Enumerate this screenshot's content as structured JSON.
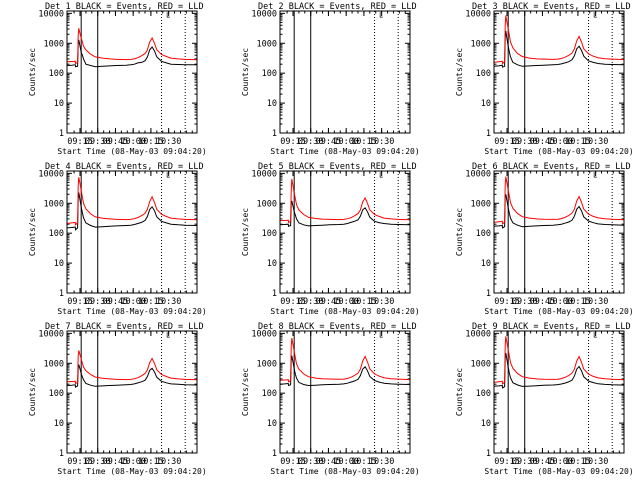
{
  "colors": {
    "events": "#000000",
    "lld": "#ff0000",
    "background": "#ffffff",
    "axes": "#000000"
  },
  "chart_data": {
    "type": "line",
    "yscale": "log",
    "ylim": [
      1,
      12000
    ],
    "xlim_minutes": [
      0,
      110
    ],
    "x_origin": "09:04",
    "ytick_values": [
      1,
      10,
      100,
      1000,
      10000
    ],
    "ytick_labels": [
      "1",
      "10",
      "100",
      "1000",
      "10000"
    ],
    "xtick_minutes": [
      11,
      26,
      41,
      56,
      71,
      86
    ],
    "xtick_labels": [
      "09:15",
      "09:30",
      "09:45",
      "10:00",
      "10:15",
      "10:30"
    ],
    "ylabel": "Counts/sec",
    "xlabel": "Start Time (08-May-03 09:04:20)",
    "title_suffix": " BLACK = Events, RED = LLD",
    "legend_glyph": "└",
    "x_minutes": [
      0,
      4,
      7,
      7.2,
      9,
      9.5,
      10,
      11,
      12,
      13,
      14,
      16,
      20,
      24,
      30,
      36,
      42,
      50,
      54,
      57,
      60,
      63,
      66,
      68,
      70,
      72,
      74,
      76,
      80,
      84,
      88,
      94,
      100,
      110
    ],
    "panels": [
      {
        "title": "Det 1",
        "solid_lines_min": [
          12,
          26
        ],
        "dotted_lines_min": [
          80,
          100
        ],
        "series": [
          {
            "name": "Events",
            "color": "#000000",
            "values": [
              180,
              185,
              190,
              165,
              170,
              900,
              1300,
              800,
              500,
              400,
              300,
              200,
              180,
              165,
              170,
              175,
              180,
              185,
              190,
              200,
              220,
              230,
              260,
              350,
              600,
              750,
              550,
              350,
              250,
              220,
              200,
              195,
              190,
              190
            ]
          },
          {
            "name": "LLD",
            "color": "#ff0000",
            "values": [
              240,
              245,
              250,
              210,
              230,
              1800,
              3200,
              2100,
              1500,
              1100,
              800,
              600,
              430,
              350,
              320,
              300,
              290,
              285,
              290,
              300,
              330,
              380,
              450,
              600,
              1100,
              1500,
              1000,
              600,
              420,
              360,
              320,
              300,
              290,
              280
            ]
          }
        ]
      },
      {
        "title": "Det 2",
        "solid_lines_min": [
          12,
          26
        ],
        "dotted_lines_min": [
          80,
          100
        ],
        "series": []
      },
      {
        "title": "Det 3",
        "solid_lines_min": [
          12,
          26
        ],
        "dotted_lines_min": [
          80,
          100
        ],
        "series": [
          {
            "name": "Events",
            "color": "#000000",
            "values": [
              170,
              175,
              185,
              160,
              170,
              1500,
              2600,
              1400,
              800,
              500,
              350,
              230,
              190,
              170,
              175,
              180,
              185,
              190,
              195,
              205,
              220,
              240,
              280,
              380,
              650,
              800,
              580,
              370,
              260,
              230,
              210,
              200,
              195,
              190
            ]
          },
          {
            "name": "LLD",
            "color": "#ff0000",
            "values": [
              230,
              240,
              250,
              210,
              240,
              4000,
              8500,
              5000,
              3000,
              1800,
              1100,
              700,
              450,
              360,
              320,
              300,
              295,
              290,
              295,
              310,
              340,
              390,
              470,
              650,
              1200,
              1700,
              1100,
              650,
              440,
              370,
              330,
              305,
              295,
              285
            ]
          }
        ]
      },
      {
        "title": "Det 4",
        "solid_lines_min": [
          12,
          26
        ],
        "dotted_lines_min": [
          80,
          100
        ],
        "series": [
          {
            "name": "Events",
            "color": "#000000",
            "values": [
              150,
              155,
              160,
              130,
              150,
              1400,
              2300,
              1300,
              750,
              480,
              330,
              220,
              180,
              160,
              165,
              170,
              175,
              180,
              185,
              195,
              210,
              230,
              265,
              360,
              620,
              760,
              560,
              350,
              250,
              220,
              200,
              190,
              185,
              180
            ]
          },
          {
            "name": "LLD",
            "color": "#ff0000",
            "values": [
              210,
              220,
              230,
              190,
              220,
              3800,
              7500,
              4500,
              2700,
              1600,
              1000,
              650,
              440,
              350,
              315,
              300,
              290,
              285,
              290,
              305,
              335,
              385,
              460,
              630,
              1150,
              1650,
              1050,
              630,
              430,
              360,
              320,
              300,
              290,
              280
            ]
          }
        ]
      },
      {
        "title": "Det 5",
        "solid_lines_min": [
          12,
          26
        ],
        "dotted_lines_min": [
          80,
          100
        ],
        "series": [
          {
            "name": "Events",
            "color": "#000000",
            "values": [
              190,
              195,
              200,
              170,
              180,
              900,
              1200,
              800,
              520,
              400,
              300,
              220,
              190,
              175,
              180,
              185,
              190,
              195,
              200,
              210,
              230,
              250,
              280,
              370,
              600,
              700,
              520,
              340,
              250,
              225,
              210,
              200,
              195,
              190
            ]
          },
          {
            "name": "LLD",
            "color": "#ff0000",
            "values": [
              260,
              265,
              270,
              230,
              250,
              2500,
              6500,
              3800,
              2200,
              1400,
              900,
              600,
              420,
              340,
              310,
              295,
              290,
              285,
              290,
              305,
              330,
              380,
              450,
              600,
              1100,
              1500,
              1000,
              600,
              420,
              360,
              320,
              300,
              290,
              280
            ]
          }
        ]
      },
      {
        "title": "Det 6",
        "solid_lines_min": [
          12,
          26
        ],
        "dotted_lines_min": [
          80,
          100
        ],
        "series": [
          {
            "name": "Events",
            "color": "#000000",
            "values": [
              170,
              175,
              180,
              150,
              165,
              1500,
              2000,
              1200,
              700,
              450,
              320,
              220,
              185,
              165,
              170,
              175,
              180,
              185,
              190,
              200,
              215,
              235,
              270,
              370,
              630,
              780,
              560,
              350,
              255,
              225,
              205,
              195,
              190,
              185
            ]
          },
          {
            "name": "LLD",
            "color": "#ff0000",
            "values": [
              230,
              240,
              250,
              205,
              235,
              4200,
              7800,
              4600,
              2800,
              1700,
              1050,
              680,
              450,
              355,
              320,
              300,
              292,
              288,
              292,
              307,
              337,
              387,
              465,
              640,
              1180,
              1680,
              1080,
              640,
              435,
              365,
              325,
              302,
              292,
              282
            ]
          }
        ]
      },
      {
        "title": "Det 7",
        "solid_lines_min": [
          12,
          26
        ],
        "dotted_lines_min": [
          80,
          100
        ],
        "series": [
          {
            "name": "Events",
            "color": "#000000",
            "values": [
              180,
              185,
              190,
              160,
              175,
              700,
              900,
              650,
              450,
              350,
              280,
              210,
              185,
              170,
              175,
              180,
              185,
              190,
              195,
              205,
              220,
              240,
              270,
              360,
              580,
              680,
              510,
              340,
              250,
              222,
              205,
              198,
              192,
              188
            ]
          },
          {
            "name": "LLD",
            "color": "#ff0000",
            "values": [
              240,
              245,
              250,
              210,
              230,
              1800,
              2700,
              1900,
              1400,
              1000,
              750,
              560,
              420,
              345,
              315,
              300,
              290,
              285,
              290,
              303,
              330,
              380,
              450,
              600,
              1050,
              1450,
              980,
              600,
              420,
              360,
              320,
              300,
              290,
              280
            ]
          }
        ]
      },
      {
        "title": "Det 8",
        "solid_lines_min": [
          12,
          26
        ],
        "dotted_lines_min": [
          80,
          100
        ],
        "series": [
          {
            "name": "Events",
            "color": "#000000",
            "values": [
              200,
              205,
              210,
              180,
              190,
              1200,
              1800,
              1100,
              650,
              430,
              320,
              230,
              195,
              180,
              185,
              190,
              195,
              200,
              205,
              215,
              235,
              255,
              290,
              390,
              640,
              760,
              560,
              360,
              265,
              235,
              215,
              205,
              200,
              195
            ]
          },
          {
            "name": "LLD",
            "color": "#ff0000",
            "values": [
              270,
              275,
              280,
              240,
              260,
              3500,
              7000,
              4200,
              2500,
              1500,
              950,
              640,
              440,
              355,
              320,
              305,
              298,
              292,
              296,
              310,
              340,
              390,
              465,
              640,
              1180,
              1700,
              1100,
              650,
              440,
              370,
              330,
              305,
              295,
              285
            ]
          }
        ]
      },
      {
        "title": "Det 9",
        "solid_lines_min": [
          12,
          26
        ],
        "dotted_lines_min": [
          80,
          100
        ],
        "series": [
          {
            "name": "Events",
            "color": "#000000",
            "values": [
              170,
              175,
              180,
              150,
              165,
              1400,
              2200,
              1300,
              720,
              460,
              330,
              225,
              188,
              168,
              172,
              178,
              183,
              188,
              193,
              203,
              218,
              238,
              272,
              372,
              632,
              782,
              562,
              352,
              256,
              226,
              206,
              196,
              191,
              186
            ]
          },
          {
            "name": "LLD",
            "color": "#ff0000",
            "values": [
              230,
              240,
              250,
              205,
              235,
              4000,
              8000,
              4700,
              2800,
              1700,
              1050,
              680,
              450,
              355,
              320,
              300,
              292,
              288,
              292,
              307,
              337,
              387,
              465,
              640,
              1180,
              1680,
              1080,
              640,
              435,
              365,
              325,
              302,
              292,
              282
            ]
          }
        ]
      }
    ]
  }
}
